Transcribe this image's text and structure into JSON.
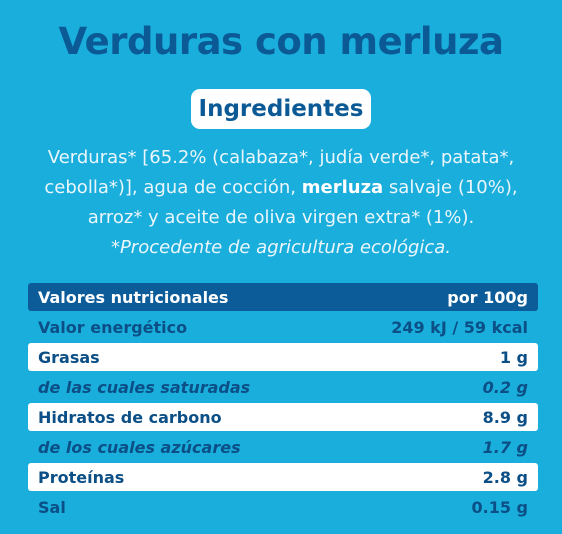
{
  "title": "Verduras con merluza",
  "ingredients": {
    "heading": "Ingredientes",
    "lines": [
      [
        "Verduras* [65.2% (calabaza*, judía verde*, patata*,"
      ],
      [
        "cebolla*)], agua de cocción, ",
        "merluza",
        " salvaje (10%),"
      ],
      [
        "arroz* y aceite de oliva virgen extra* (1%)."
      ]
    ],
    "note": "*Procedente de agricultura ecológica."
  },
  "table": {
    "header": [
      "Valores nutricionales",
      "por 100g"
    ],
    "rows": [
      [
        "Valor energético",
        "249 kJ / 59 kcal"
      ],
      [
        "Grasas",
        "1 g"
      ],
      [
        "de las cuales saturadas",
        "0.2 g"
      ],
      [
        "Hidratos de carbono",
        "8.9 g"
      ],
      [
        "de los cuales azúcares",
        "1.7 g"
      ],
      [
        "Proteínas",
        "2.8 g"
      ],
      [
        "Sal",
        "0.15 g"
      ]
    ]
  }
}
